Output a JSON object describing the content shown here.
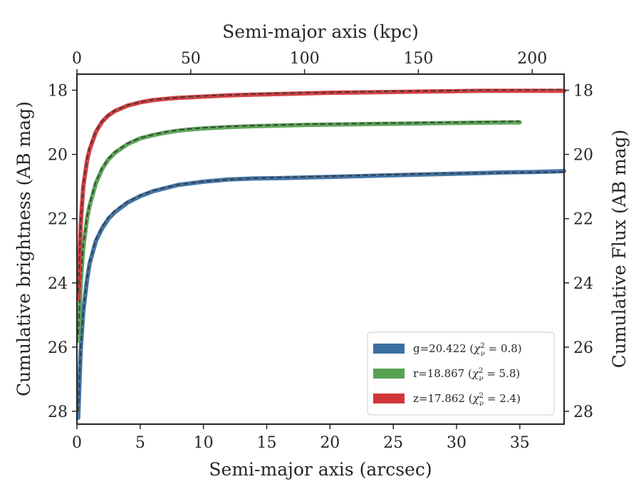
{
  "chart_data": {
    "type": "line",
    "xlabel_bottom": "Semi-major axis (arcsec)",
    "xlabel_top": "Semi-major axis (kpc)",
    "ylabel_left": "Cumulative brightness (AB mag)",
    "ylabel_right": "Cumulative Flux (AB mag)",
    "xlim": [
      0,
      38.5
    ],
    "ylim": [
      28.4,
      17.5
    ],
    "y_inverted": true,
    "top_xlim_kpc": [
      0,
      214
    ],
    "xticks": [
      "0",
      "5",
      "10",
      "15",
      "20",
      "25",
      "30",
      "35"
    ],
    "top_xticks": [
      "0",
      "50",
      "100",
      "150",
      "200"
    ],
    "yticks": [
      "18",
      "20",
      "22",
      "24",
      "26",
      "28"
    ],
    "legend_position": "lower-right",
    "grid": false,
    "series": [
      {
        "name": "g=20.422 (χ²ᵥ = 0.8)",
        "legend_prefix": "g=20.422 (",
        "legend_chi": "χ",
        "legend_sup": "2",
        "legend_sub": "ν",
        "legend_suffix": " = 0.8)",
        "color": "#3a6fa2",
        "x": [
          0.1,
          0.3,
          0.5,
          0.8,
          1.0,
          1.5,
          2.0,
          2.5,
          3.0,
          4.0,
          5.0,
          6.0,
          7.0,
          8.0,
          9.0,
          10.0,
          12.0,
          14.0,
          16.0,
          18.0,
          20.0,
          22.0,
          24.0,
          26.0,
          28.0,
          30.0,
          32.0,
          34.0,
          36.0,
          38.5
        ],
        "y": [
          28.2,
          26.1,
          24.9,
          23.9,
          23.4,
          22.7,
          22.3,
          22.0,
          21.8,
          21.5,
          21.3,
          21.15,
          21.05,
          20.95,
          20.9,
          20.85,
          20.78,
          20.75,
          20.74,
          20.72,
          20.7,
          20.68,
          20.66,
          20.64,
          20.62,
          20.6,
          20.58,
          20.56,
          20.55,
          20.52
        ],
        "model_y": [
          28.0,
          26.0,
          24.9,
          23.85,
          23.35,
          22.65,
          22.25,
          21.95,
          21.75,
          21.48,
          21.28,
          21.13,
          21.03,
          20.95,
          20.89,
          20.84,
          20.78,
          20.74,
          20.72,
          20.7,
          20.68,
          20.66,
          20.64,
          20.62,
          20.6,
          20.59,
          20.58,
          20.57,
          20.56,
          20.55
        ]
      },
      {
        "name": "r=18.867 (χ²ᵥ = 5.8)",
        "legend_prefix": "r=18.867 (",
        "legend_chi": "χ",
        "legend_sup": "2",
        "legend_sub": "ν",
        "legend_suffix": " = 5.8)",
        "color": "#56a251",
        "x": [
          0.1,
          0.3,
          0.5,
          0.8,
          1.0,
          1.5,
          2.0,
          2.5,
          3.0,
          4.0,
          5.0,
          6.0,
          7.0,
          8.0,
          9.0,
          10.0,
          12.0,
          14.0,
          16.0,
          18.0,
          20.0,
          22.0,
          24.0,
          26.0,
          28.0,
          30.0,
          32.0,
          35.0
        ],
        "y": [
          25.8,
          24.0,
          22.9,
          22.0,
          21.6,
          20.9,
          20.45,
          20.15,
          19.95,
          19.68,
          19.5,
          19.4,
          19.32,
          19.26,
          19.22,
          19.19,
          19.15,
          19.12,
          19.1,
          19.08,
          19.07,
          19.06,
          19.05,
          19.04,
          19.03,
          19.02,
          19.01,
          19.0
        ],
        "model_y": [
          25.6,
          23.9,
          22.85,
          21.95,
          21.55,
          20.85,
          20.42,
          20.13,
          19.93,
          19.66,
          19.49,
          19.38,
          19.3,
          19.24,
          19.2,
          19.17,
          19.13,
          19.1,
          19.08,
          19.06,
          19.05,
          19.04,
          19.03,
          19.02,
          19.01,
          19.0,
          18.99,
          18.97
        ]
      },
      {
        "name": "z=17.862 (χ²ᵥ = 2.4)",
        "legend_prefix": "z=17.862 (",
        "legend_chi": "χ",
        "legend_sup": "2",
        "legend_sub": "ν",
        "legend_suffix": " = 2.4)",
        "color": "#d1373a",
        "x": [
          0.1,
          0.3,
          0.5,
          0.8,
          1.0,
          1.5,
          2.0,
          2.5,
          3.0,
          4.0,
          5.0,
          6.0,
          7.0,
          8.0,
          9.0,
          10.0,
          12.0,
          14.0,
          16.0,
          18.0,
          20.0,
          22.0,
          24.0,
          26.0,
          28.0,
          30.0,
          32.0,
          34.0,
          36.0,
          38.5
        ],
        "y": [
          24.5,
          22.2,
          21.0,
          20.2,
          19.85,
          19.3,
          18.98,
          18.78,
          18.65,
          18.48,
          18.38,
          18.31,
          18.27,
          18.24,
          18.22,
          18.2,
          18.16,
          18.14,
          18.12,
          18.1,
          18.08,
          18.07,
          18.06,
          18.05,
          18.04,
          18.03,
          18.02,
          18.02,
          18.02,
          18.02
        ],
        "model_y": [
          24.3,
          22.1,
          20.95,
          20.15,
          19.8,
          19.27,
          18.96,
          18.77,
          18.64,
          18.47,
          18.37,
          18.3,
          18.26,
          18.23,
          18.2,
          18.18,
          18.15,
          18.12,
          18.1,
          18.08,
          18.07,
          18.05,
          18.04,
          18.03,
          18.02,
          18.01,
          18.0,
          18.0,
          17.99,
          17.98
        ]
      }
    ]
  }
}
